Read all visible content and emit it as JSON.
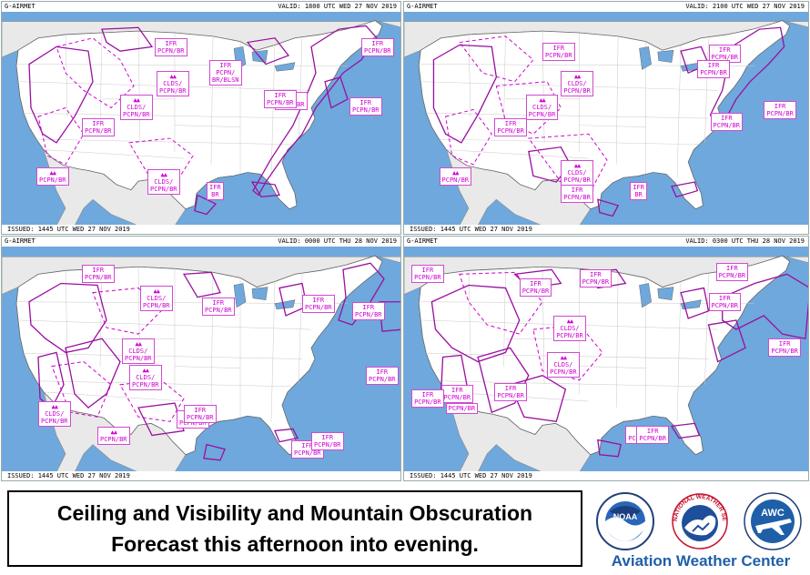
{
  "panels": [
    {
      "product": "G-AIRMET",
      "valid": "VALID: 1800 UTC WED 27 NOV 2019",
      "issued": "ISSUED: 1445 UTC WED 27 NOV 2019",
      "labels": [
        {
          "text": "IFR\nPCPN/BR",
          "mtn": false
        },
        {
          "text": "IFR\nPCPN/\nBR/BLSN",
          "mtn": false
        },
        {
          "text": "IFR\nPCPN/BR",
          "mtn": false
        },
        {
          "text": "IFR\nPCPN/BR",
          "mtn": false
        },
        {
          "text": "CLDS/\nPCPN/BR",
          "mtn": true
        },
        {
          "text": "CLDS/\nPCPN/BR",
          "mtn": true
        },
        {
          "text": "IFR\nPCPN/BR",
          "mtn": false
        },
        {
          "text": "IFR\nPCPN/BR",
          "mtn": false
        },
        {
          "text": "IFR\nPCPN/BR",
          "mtn": false
        },
        {
          "text": "PCPN/BR",
          "mtn": true
        },
        {
          "text": "CLDS/\nPCPN/BR",
          "mtn": true
        },
        {
          "text": "IFR\nBR",
          "mtn": false
        }
      ]
    },
    {
      "product": "G-AIRMET",
      "valid": "VALID: 2100 UTC WED 27 NOV 2019",
      "issued": "ISSUED: 1445 UTC WED 27 NOV 2019",
      "labels": [
        {
          "text": "IFR\nPCPN/BR",
          "mtn": false
        },
        {
          "text": "IFR\nPCPN/BR",
          "mtn": false
        },
        {
          "text": "IFR\nPCPN/BR",
          "mtn": false
        },
        {
          "text": "CLDS/\nPCPN/BR",
          "mtn": true
        },
        {
          "text": "CLDS/\nPCPN/BR",
          "mtn": true
        },
        {
          "text": "IFR\nPCPN/BR",
          "mtn": false
        },
        {
          "text": "IFR\nPCPN/BR",
          "mtn": false
        },
        {
          "text": "IFR\nPCPN/BR",
          "mtn": false
        },
        {
          "text": "PCPN/BR",
          "mtn": true
        },
        {
          "text": "CLDS/\nPCPN/BR",
          "mtn": true
        },
        {
          "text": "IFR\nPCPN/BR",
          "mtn": false
        },
        {
          "text": "IFR\nBR",
          "mtn": false
        }
      ]
    },
    {
      "product": "G-AIRMET",
      "valid": "VALID: 0000 UTC THU 28 NOV 2019",
      "issued": "ISSUED: 1445 UTC WED 27 NOV 2019",
      "labels": [
        {
          "text": "IFR\nPCPN/BR",
          "mtn": false
        },
        {
          "text": "CLDS/\nPCPN/BR",
          "mtn": true
        },
        {
          "text": "IFR\nPCPN/BR",
          "mtn": false
        },
        {
          "text": "IFR\nPCPN/BR",
          "mtn": false
        },
        {
          "text": "CLDS/\nPCPN/BR",
          "mtn": true
        },
        {
          "text": "CLDS/\nPCPN/BR",
          "mtn": true
        },
        {
          "text": "IFR\nPCPN/BR",
          "mtn": false
        },
        {
          "text": "CLDS/\nPCPN/BR",
          "mtn": true
        },
        {
          "text": "IFR\nPCPN/BR",
          "mtn": false
        },
        {
          "text": "IFR\nPCPN/BR",
          "mtn": false
        },
        {
          "text": "PCPN/BR",
          "mtn": true
        },
        {
          "text": "IFR\nPCPN/BR",
          "mtn": false
        },
        {
          "text": "IFR\nPCPN/BR",
          "mtn": false
        },
        {
          "text": "IFR\nPCPN/BR",
          "mtn": false
        }
      ]
    },
    {
      "product": "G-AIRMET",
      "valid": "VALID: 0300 UTC THU 28 NOV 2019",
      "issued": "ISSUED: 1445 UTC WED 27 NOV 2019",
      "labels": [
        {
          "text": "IFR\nPCPN/BR",
          "mtn": false
        },
        {
          "text": "IFR\nPCPN/BR",
          "mtn": false
        },
        {
          "text": "IFR\nPCPN/BR",
          "mtn": false
        },
        {
          "text": "IFR\nPCPN/BR",
          "mtn": false
        },
        {
          "text": "IFR\nPCPN/BR",
          "mtn": false
        },
        {
          "text": "CLDS/\nPCPN/BR",
          "mtn": true
        },
        {
          "text": "CLDS/\nPCPN/BR",
          "mtn": true
        },
        {
          "text": "IFR\nPCPN/BR",
          "mtn": false
        },
        {
          "text": "IFR\nPCPN/BR",
          "mtn": false
        },
        {
          "text": "IFR\nPCPN/BR",
          "mtn": false
        },
        {
          "text": "PCPN/BR",
          "mtn": false
        },
        {
          "text": "IFR\nPCPN/BR",
          "mtn": false
        },
        {
          "text": "IFR\nPCPN/BR",
          "mtn": false
        },
        {
          "text": "IFR\nPCPN/BR",
          "mtn": false
        }
      ]
    }
  ],
  "caption": {
    "line1": "Ceiling and Visibility and Mountain Obscuration",
    "line2": "Forecast this afternoon into evening."
  },
  "logos": {
    "noaa_text": "NOAA",
    "nws_text": "NATIONAL WEATHER SERVICE",
    "awc_text": "AWC",
    "org_name": "Aviation Weather Center"
  },
  "colors": {
    "ocean": "#6fa8dc",
    "land": "#ffffff",
    "airmet": "#d000d0",
    "airmet_dark": "#9a0fa0",
    "awc_blue": "#1f5fa8"
  }
}
